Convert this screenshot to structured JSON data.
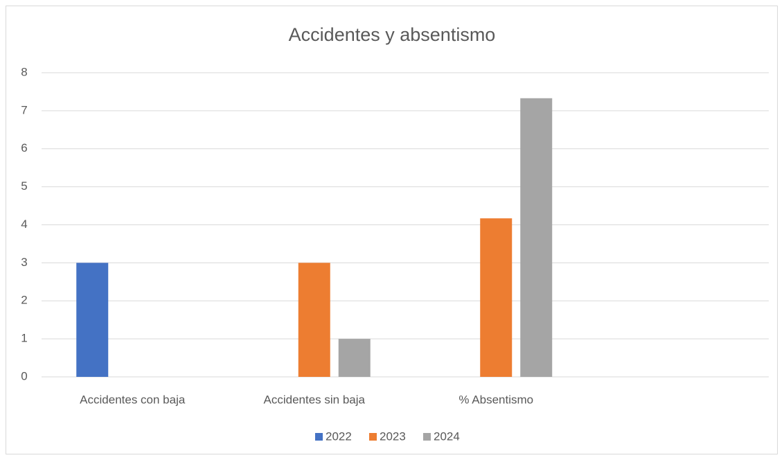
{
  "chart_data": {
    "type": "bar",
    "title": "Accidentes y absentismo",
    "categories": [
      "Accidentes con baja",
      "Accidentes sin baja",
      "% Absentismo",
      null
    ],
    "series": [
      {
        "name": "2022",
        "color": "#4472c4",
        "values": [
          3,
          0,
          0,
          null
        ]
      },
      {
        "name": "2023",
        "color": "#ed7d31",
        "values": [
          0,
          3,
          4.17,
          null
        ]
      },
      {
        "name": "2024",
        "color": "#a5a5a5",
        "values": [
          0,
          1,
          7.33,
          null
        ]
      }
    ],
    "ylim": [
      0,
      8
    ],
    "yticks": [
      0,
      1,
      2,
      3,
      4,
      5,
      6,
      7,
      8
    ],
    "grid": true,
    "legend": "bottom"
  }
}
